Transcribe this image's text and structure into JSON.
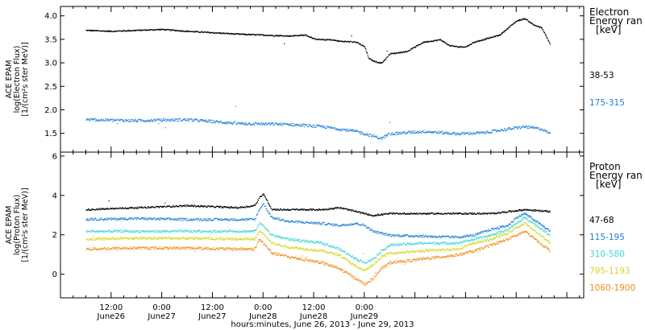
{
  "chart_data": [
    {
      "type": "scatter",
      "panel": "electron",
      "ylabel_lines": [
        "ACE EPAM",
        "log(Electron Flux)",
        "[1/(cm²s ster MeV)]"
      ],
      "ylim": [
        1.1,
        4.2
      ],
      "yticks": [
        1.5,
        2.0,
        2.5,
        3.0,
        3.5,
        4.0
      ],
      "ytick_labels": [
        "1.5",
        "2.0",
        "2.5",
        "3.0",
        "3.5",
        "4.0"
      ],
      "legend_title": [
        "Electron",
        "Energy ran",
        "[keV]"
      ],
      "series": [
        {
          "name": "38-53",
          "color": "#000000",
          "noise": 0.012,
          "x": [
            0,
            6,
            12,
            18,
            24,
            30,
            36,
            42,
            48,
            52,
            54,
            56,
            58,
            60,
            64,
            66,
            67,
            68,
            70,
            72,
            76,
            80,
            84,
            86,
            88,
            90,
            92,
            94,
            96,
            98,
            100,
            102,
            104,
            106,
            108,
            110
          ],
          "y": [
            3.7,
            3.68,
            3.7,
            3.72,
            3.68,
            3.65,
            3.62,
            3.6,
            3.58,
            3.6,
            3.52,
            3.5,
            3.5,
            3.47,
            3.45,
            3.35,
            3.1,
            3.05,
            3.0,
            3.2,
            3.25,
            3.45,
            3.5,
            3.38,
            3.35,
            3.35,
            3.45,
            3.5,
            3.55,
            3.6,
            3.75,
            3.9,
            3.95,
            3.82,
            3.75,
            3.4
          ]
        },
        {
          "name": "175-315",
          "color": "#1f7fd6",
          "noise": 0.03,
          "x": [
            0,
            12,
            24,
            36,
            48,
            56,
            60,
            64,
            68,
            70,
            72,
            80,
            88,
            94,
            100,
            104,
            108,
            110
          ],
          "y": [
            1.8,
            1.78,
            1.8,
            1.72,
            1.7,
            1.65,
            1.6,
            1.55,
            1.45,
            1.4,
            1.5,
            1.55,
            1.5,
            1.52,
            1.6,
            1.65,
            1.6,
            1.5
          ]
        }
      ]
    },
    {
      "type": "scatter",
      "panel": "proton",
      "ylabel_lines": [
        "ACE EPAM",
        "log(Proton Flux)",
        "[1/(cm²s ster MeV)]"
      ],
      "ylim": [
        -1.2,
        6.2
      ],
      "yticks": [
        0,
        2,
        4,
        6
      ],
      "ytick_labels": [
        "0",
        "2",
        "4",
        "6"
      ],
      "legend_title": [
        "Proton",
        "Energy ran",
        "[keV]"
      ],
      "series": [
        {
          "name": "47-68",
          "color": "#000000",
          "noise": 0.04,
          "x": [
            0,
            12,
            24,
            36,
            40,
            41,
            42,
            43,
            44,
            48,
            56,
            60,
            64,
            66,
            68,
            72,
            80,
            88,
            96,
            100,
            104,
            110
          ],
          "y": [
            3.3,
            3.4,
            3.5,
            3.4,
            3.5,
            3.9,
            4.1,
            3.7,
            3.3,
            3.3,
            3.3,
            3.4,
            3.2,
            3.1,
            3.0,
            3.1,
            3.1,
            3.1,
            3.1,
            3.2,
            3.3,
            3.2
          ]
        },
        {
          "name": "115-195",
          "color": "#1f7fd6",
          "noise": 0.06,
          "x": [
            0,
            12,
            24,
            36,
            40,
            41,
            42,
            44,
            48,
            56,
            60,
            64,
            66,
            68,
            72,
            80,
            88,
            92,
            96,
            100,
            102,
            104,
            110
          ],
          "y": [
            2.8,
            2.85,
            2.8,
            2.8,
            2.8,
            3.3,
            3.6,
            2.9,
            2.7,
            2.6,
            2.5,
            2.6,
            2.5,
            2.2,
            2.0,
            1.95,
            1.9,
            2.0,
            2.3,
            2.5,
            2.9,
            3.1,
            2.2
          ]
        },
        {
          "name": "310-580",
          "color": "#3fd6d6",
          "noise": 0.06,
          "x": [
            0,
            12,
            24,
            36,
            40,
            41,
            42,
            44,
            48,
            56,
            60,
            64,
            66,
            68,
            70,
            72,
            80,
            88,
            92,
            96,
            100,
            102,
            104,
            110
          ],
          "y": [
            2.2,
            2.2,
            2.2,
            2.2,
            2.2,
            2.6,
            2.5,
            2.0,
            1.8,
            1.6,
            1.3,
            0.8,
            0.6,
            0.8,
            1.2,
            1.5,
            1.6,
            1.6,
            1.8,
            2.0,
            2.3,
            2.6,
            2.9,
            2.0
          ]
        },
        {
          "name": "795-1193",
          "color": "#d6d622",
          "noise": 0.06,
          "x": [
            0,
            12,
            24,
            36,
            40,
            41,
            42,
            44,
            48,
            56,
            60,
            64,
            66,
            68,
            70,
            72,
            80,
            88,
            92,
            96,
            100,
            102,
            104,
            110
          ],
          "y": [
            1.8,
            1.85,
            1.85,
            1.8,
            1.8,
            2.2,
            2.1,
            1.6,
            1.4,
            1.2,
            1.0,
            0.4,
            0.2,
            0.5,
            0.9,
            1.1,
            1.2,
            1.3,
            1.6,
            1.8,
            2.1,
            2.4,
            2.6,
            1.6
          ]
        },
        {
          "name": "1060-1900",
          "color": "#f28c1a",
          "noise": 0.07,
          "x": [
            0,
            12,
            24,
            36,
            40,
            41,
            42,
            44,
            48,
            56,
            60,
            64,
            66,
            68,
            70,
            72,
            80,
            88,
            92,
            96,
            100,
            102,
            104,
            110
          ],
          "y": [
            1.3,
            1.35,
            1.35,
            1.3,
            1.3,
            1.8,
            1.6,
            1.1,
            0.9,
            0.6,
            0.3,
            -0.2,
            -0.5,
            -0.2,
            0.3,
            0.6,
            0.8,
            1.0,
            1.2,
            1.5,
            1.8,
            2.0,
            2.2,
            1.2
          ]
        }
      ]
    }
  ],
  "x_axis": {
    "hours_range": [
      -6,
      118
    ],
    "ticks": [
      {
        "h": 6,
        "time": "12:00",
        "day": "June26"
      },
      {
        "h": 18,
        "time": "0:00",
        "day": "June27"
      },
      {
        "h": 30,
        "time": "12:00",
        "day": "June27"
      },
      {
        "h": 42,
        "time": "0:00",
        "day": "June28"
      },
      {
        "h": 54,
        "time": "12:00",
        "day": "June28"
      },
      {
        "h": 66,
        "time": "0:00",
        "day": "June29"
      }
    ],
    "title": "hours:minutes, June 26, 2013 - June 29, 2013"
  }
}
